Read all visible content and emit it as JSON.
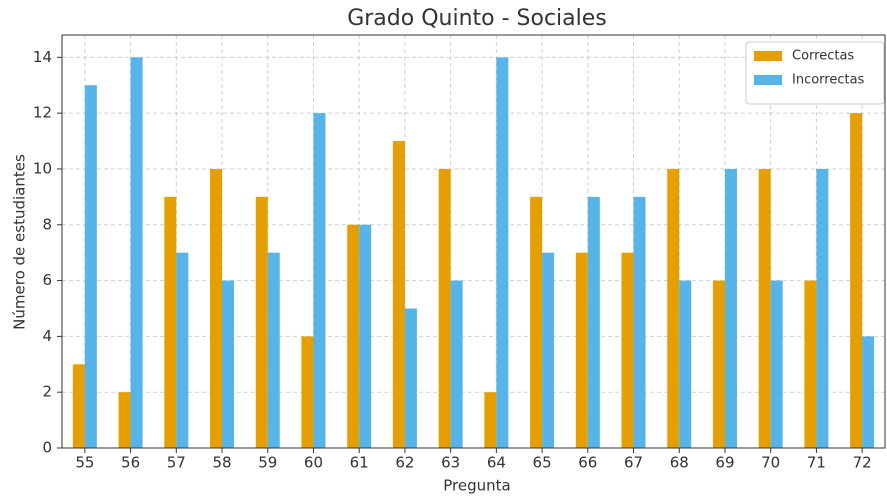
{
  "chart_data": {
    "type": "bar",
    "title": "Grado Quinto - Sociales",
    "xlabel": "Pregunta",
    "ylabel": "Número de estudiantes",
    "categories": [
      "55",
      "56",
      "57",
      "58",
      "59",
      "60",
      "61",
      "62",
      "63",
      "64",
      "65",
      "66",
      "67",
      "68",
      "69",
      "70",
      "71",
      "72"
    ],
    "series": [
      {
        "name": "Correctas",
        "color": "#E69F00",
        "values": [
          3,
          2,
          9,
          10,
          9,
          4,
          8,
          11,
          10,
          2,
          9,
          7,
          7,
          10,
          6,
          10,
          6,
          12
        ]
      },
      {
        "name": "Incorrectas",
        "color": "#56B4E9",
        "values": [
          13,
          14,
          7,
          6,
          7,
          12,
          8,
          5,
          6,
          14,
          7,
          9,
          9,
          6,
          10,
          6,
          10,
          4
        ]
      }
    ],
    "ylim": [
      0,
      14.8
    ],
    "yticks": [
      0,
      2,
      4,
      6,
      8,
      10,
      12,
      14
    ],
    "grid": true,
    "legend": "upper right"
  }
}
